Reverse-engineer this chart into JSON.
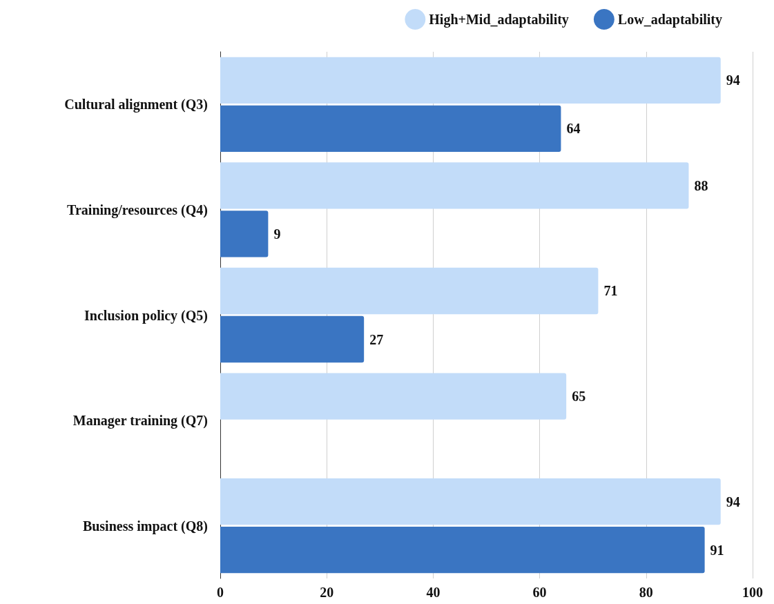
{
  "chart_data": {
    "type": "bar",
    "orientation": "horizontal",
    "categories": [
      "Cultural alignment (Q3)",
      "Training/resources (Q4)",
      "Inclusion policy (Q5)",
      "Manager training (Q7)",
      "Business impact (Q8)"
    ],
    "series": [
      {
        "name": "High+Mid_adaptability",
        "color": "#c2dcf9",
        "values": [
          94,
          88,
          71,
          65,
          94
        ]
      },
      {
        "name": "Low_adaptability",
        "color": "#3a75c2",
        "values": [
          64,
          9,
          27,
          null,
          91
        ]
      }
    ],
    "xlim": [
      0,
      100
    ],
    "xticks": [
      0,
      20,
      40,
      60,
      80,
      100
    ],
    "grid": "x",
    "legend": "top right",
    "data_labels": true
  }
}
